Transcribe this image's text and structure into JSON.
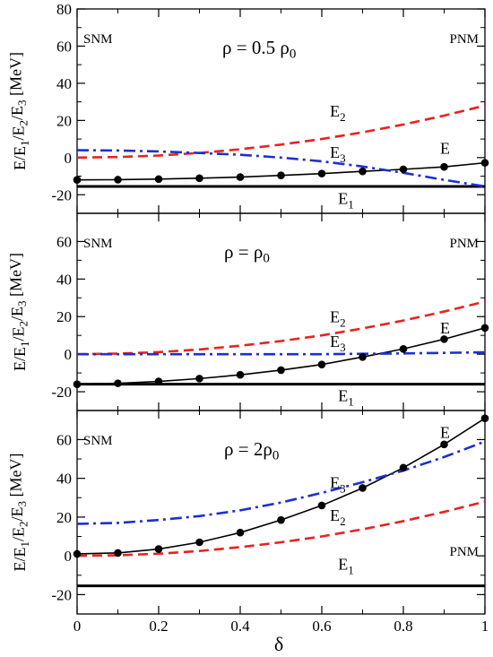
{
  "figure": {
    "xlabel": "δ",
    "ylabel": "E/E1/E2/E3 [MeV]",
    "xlim": [
      0,
      1
    ],
    "xticks": [
      0,
      0.2,
      0.4,
      0.6,
      0.8,
      1
    ],
    "xtick_labels": [
      "0",
      "0.2",
      "0.4",
      "0.6",
      "0.8",
      "1"
    ],
    "colors": {
      "E": "#000000",
      "E1": "#000000",
      "E2": "#e8231f",
      "E3": "#1f2fd0"
    }
  },
  "chart_data": [
    {
      "type": "line",
      "panel": "top",
      "density_label": "ρ = 0.5 ρ0",
      "left_label": "SNM",
      "right_label": "PNM",
      "xlabel": "δ",
      "ylabel": "E/E1/E2/E3 [MeV]",
      "ylim": [
        -30,
        80
      ],
      "yticks": [
        -20,
        0,
        20,
        40,
        60,
        80
      ],
      "ytick_labels": [
        "-20",
        "0",
        "20",
        "40",
        "60",
        "80"
      ],
      "x": [
        0,
        0.1,
        0.2,
        0.3,
        0.4,
        0.5,
        0.6,
        0.7,
        0.8,
        0.9,
        1.0
      ],
      "series": [
        {
          "name": "E",
          "style": "solid-markers",
          "values": [
            -12,
            -11.9,
            -11.6,
            -11.1,
            -10.5,
            -9.6,
            -8.6,
            -7.4,
            -6.3,
            -5,
            -2.8
          ]
        },
        {
          "name": "E1",
          "style": "solid-thick",
          "values": [
            -15.5,
            -15.5,
            -15.5,
            -15.5,
            -15.5,
            -15.5,
            -15.5,
            -15.5,
            -15.5,
            -15.5,
            -15.5
          ]
        },
        {
          "name": "E2",
          "style": "dashed",
          "values": [
            0,
            0.3,
            1.1,
            2.5,
            4.5,
            7,
            10,
            13.6,
            17.8,
            22.6,
            28
          ]
        },
        {
          "name": "E3",
          "style": "dash-dot",
          "values": [
            4,
            3.8,
            3.3,
            2.5,
            1.5,
            0,
            -2,
            -4.8,
            -8.2,
            -12,
            -15.5
          ]
        }
      ],
      "series_labels": [
        {
          "name": "E",
          "base": "E",
          "sub": "",
          "x": 0.89,
          "y": 2
        },
        {
          "name": "E1",
          "base": "E",
          "sub": "1",
          "x": 0.64,
          "y": -25
        },
        {
          "name": "E2",
          "base": "E",
          "sub": "2",
          "x": 0.62,
          "y": 22
        },
        {
          "name": "E3",
          "base": "E",
          "sub": "3",
          "x": 0.62,
          "y": 0
        }
      ]
    },
    {
      "type": "line",
      "panel": "middle",
      "density_label": "ρ = ρ0",
      "left_label": "SNM",
      "right_label": "PNM",
      "xlabel": "δ",
      "ylabel": "E/E1/E2/E3 [MeV]",
      "ylim": [
        -30,
        75
      ],
      "yticks": [
        -20,
        0,
        20,
        40,
        60
      ],
      "ytick_labels": [
        "-20",
        "0",
        "20",
        "40",
        "60"
      ],
      "x": [
        0,
        0.1,
        0.2,
        0.3,
        0.4,
        0.5,
        0.6,
        0.7,
        0.8,
        0.9,
        1.0
      ],
      "series": [
        {
          "name": "E",
          "style": "solid-markers",
          "values": [
            -16,
            -15.5,
            -14.5,
            -13,
            -11,
            -8.5,
            -5.5,
            -1.5,
            2.8,
            8,
            14
          ]
        },
        {
          "name": "E1",
          "style": "solid-thick",
          "values": [
            -16,
            -16,
            -16,
            -16,
            -16,
            -16,
            -16,
            -16,
            -16,
            -16,
            -16
          ]
        },
        {
          "name": "E2",
          "style": "dashed",
          "values": [
            0,
            0.3,
            1.1,
            2.5,
            4.5,
            7,
            10,
            13.7,
            17.9,
            22.7,
            28
          ]
        },
        {
          "name": "E3",
          "style": "dash-dot",
          "values": [
            0,
            0,
            0,
            0,
            0,
            0,
            0,
            0.2,
            0.4,
            0.7,
            1
          ]
        }
      ],
      "series_labels": [
        {
          "name": "E",
          "base": "E",
          "sub": "",
          "x": 0.89,
          "y": 11
        },
        {
          "name": "E1",
          "base": "E",
          "sub": "1",
          "x": 0.64,
          "y": -25
        },
        {
          "name": "E2",
          "base": "E",
          "sub": "2",
          "x": 0.62,
          "y": 17
        },
        {
          "name": "E3",
          "base": "E",
          "sub": "3",
          "x": 0.62,
          "y": 4
        }
      ]
    },
    {
      "type": "line",
      "panel": "bottom",
      "density_label": "ρ = 2ρ0",
      "left_label": "SNM",
      "right_label": "PNM",
      "xlabel": "δ",
      "ylabel": "E/E1/E2/E3 [MeV]",
      "ylim": [
        -30,
        75
      ],
      "yticks": [
        -20,
        0,
        20,
        40,
        60
      ],
      "ytick_labels": [
        "-20",
        "0",
        "20",
        "40",
        "60"
      ],
      "x": [
        0,
        0.1,
        0.2,
        0.3,
        0.4,
        0.5,
        0.6,
        0.7,
        0.8,
        0.9,
        1.0
      ],
      "series": [
        {
          "name": "E",
          "style": "solid-markers",
          "values": [
            1,
            1.5,
            3.5,
            7,
            12,
            18.5,
            26,
            35,
            45.5,
            57.5,
            71
          ]
        },
        {
          "name": "E1",
          "style": "solid-thick",
          "values": [
            -15.5,
            -15.5,
            -15.5,
            -15.5,
            -15.5,
            -15.5,
            -15.5,
            -15.5,
            -15.5,
            -15.5,
            -15.5
          ]
        },
        {
          "name": "E2",
          "style": "dashed",
          "values": [
            0,
            0.3,
            1.1,
            2.5,
            4.5,
            7,
            10,
            13.7,
            17.9,
            22.7,
            28
          ]
        },
        {
          "name": "E3",
          "style": "dash-dot",
          "values": [
            16.5,
            17,
            18.5,
            20.5,
            23.5,
            27.5,
            32.5,
            38,
            44,
            51,
            59
          ]
        }
      ],
      "series_labels": [
        {
          "name": "E",
          "base": "E",
          "sub": "",
          "x": 0.89,
          "y": 61
        },
        {
          "name": "E1",
          "base": "E",
          "sub": "1",
          "x": 0.64,
          "y": -7
        },
        {
          "name": "E2",
          "base": "E",
          "sub": "2",
          "x": 0.62,
          "y": 18
        },
        {
          "name": "E3",
          "base": "E",
          "sub": "3",
          "x": 0.62,
          "y": 35
        }
      ]
    }
  ]
}
